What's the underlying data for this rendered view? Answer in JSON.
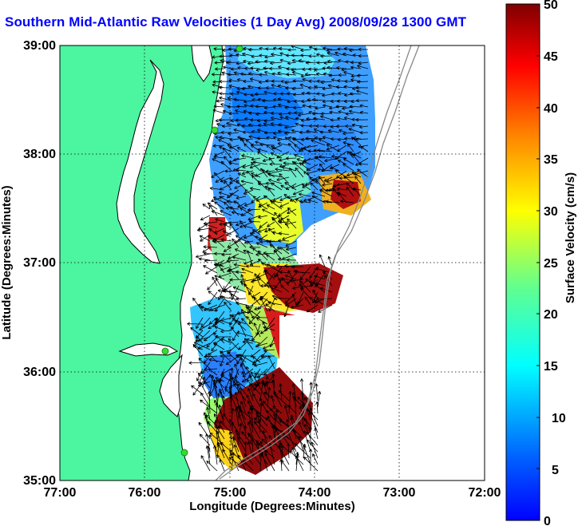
{
  "title": "Southern Mid-Atlantic Raw Velocities (1 Day Avg) 2008/09/28 1300 GMT",
  "map": {
    "x_axis_label": "Longitude (Degrees:Minutes)",
    "y_axis_label": "Latitude (Degrees:Minutes)",
    "x_ticks": [
      "77:00",
      "76:00",
      "75:00",
      "74:00",
      "73:00",
      "72:00"
    ],
    "y_ticks": [
      "39:00",
      "38:00",
      "37:00",
      "36:00",
      "35:00"
    ],
    "lon_range": [
      -77,
      -72
    ],
    "lat_range": [
      35,
      39
    ],
    "grid": "dotted",
    "land_color": "#4cf5a0",
    "coastline_color": "#000000",
    "station_color": "#33dd33"
  },
  "colorbar": {
    "label": "Surface Velocity (cm/s)",
    "ticks": [
      "50",
      "45",
      "40",
      "35",
      "30",
      "25",
      "20",
      "15",
      "10",
      "5",
      "0"
    ],
    "range": [
      0,
      50
    ],
    "colormap": "jet"
  }
}
